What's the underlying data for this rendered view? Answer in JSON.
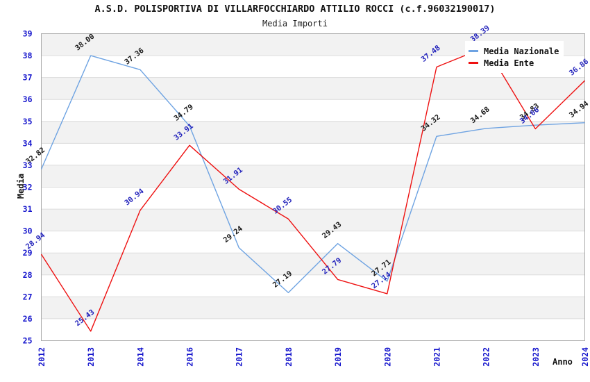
{
  "title": "A.S.D. POLISPORTIVA DI VILLARFOCCHIARDO ATTILIO ROCCI (c.f.96032190017)",
  "subtitle": "Media Importi",
  "chart_data": {
    "type": "line",
    "categories": [
      "2012",
      "2013",
      "2014",
      "2016",
      "2017",
      "2018",
      "2019",
      "2020",
      "2021",
      "2022",
      "2023",
      "2024"
    ],
    "series": [
      {
        "name": "Media Nazionale",
        "color": "#6EA3E2",
        "label_color": "#1A1A1A",
        "values": [
          32.82,
          38.0,
          37.36,
          34.79,
          29.24,
          27.19,
          29.43,
          27.71,
          34.32,
          34.68,
          34.83,
          34.94
        ]
      },
      {
        "name": "Media Ente",
        "color": "#EE1111",
        "label_color": "#2424BC",
        "values": [
          28.94,
          25.43,
          30.94,
          33.91,
          31.91,
          30.55,
          27.79,
          27.14,
          37.48,
          38.39,
          34.66,
          36.86
        ]
      }
    ],
    "xlabel": "Anno",
    "ylabel": "Media",
    "ylim": [
      25,
      39
    ],
    "y_ticks": [
      25,
      26,
      27,
      28,
      29,
      30,
      31,
      32,
      33,
      34,
      35,
      36,
      37,
      38,
      39
    ],
    "grid": true,
    "legend_position": "top-right",
    "data_labels_decimals": 2
  },
  "colors": {
    "tick_label": "#1414CC",
    "band": "#F2F2F2",
    "grid": "#DCDCDC",
    "plot_border": "#ABABAB",
    "background": "#FFFFFF"
  }
}
